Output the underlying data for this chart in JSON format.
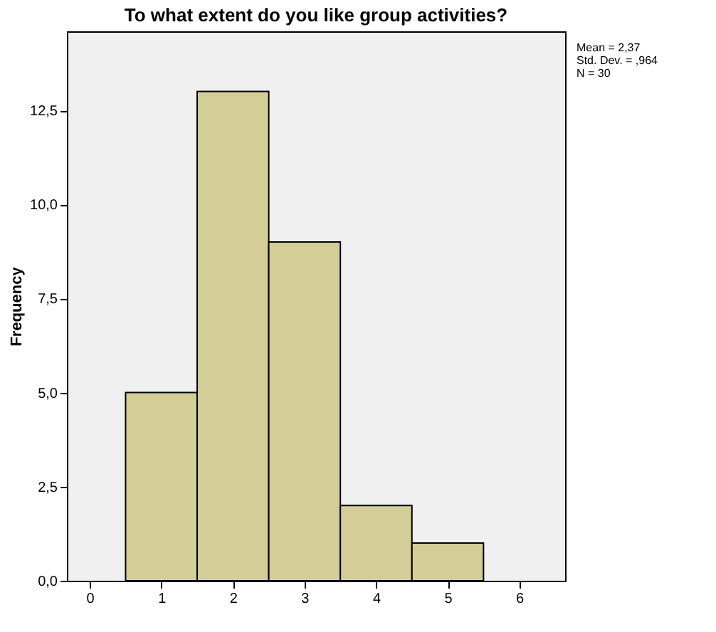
{
  "chart_data": {
    "type": "histogram",
    "title": "To what extent do you like group activities?",
    "ylabel": "Frequency",
    "bins": [
      0.5,
      1.5,
      2.5,
      3.5,
      4.5,
      5.5
    ],
    "values": [
      5,
      13,
      9,
      2,
      1
    ],
    "color": "#d3ce97",
    "xlim": [
      -0.32,
      6.64
    ],
    "xticks": [
      0,
      1,
      2,
      3,
      4,
      5,
      6
    ],
    "ylim": [
      0,
      14.6
    ],
    "yticks": [
      {
        "value": 0,
        "label": "0,0"
      },
      {
        "value": 2.5,
        "label": "2,5"
      },
      {
        "value": 5,
        "label": "5,0"
      },
      {
        "value": 7.5,
        "label": "7,5"
      },
      {
        "value": 10,
        "label": "10,0"
      },
      {
        "value": 12.5,
        "label": "12,5"
      }
    ],
    "grid": false,
    "annotations": [
      "Mean = 2,37",
      "Std. Dev. = ,964",
      "N = 30"
    ]
  }
}
